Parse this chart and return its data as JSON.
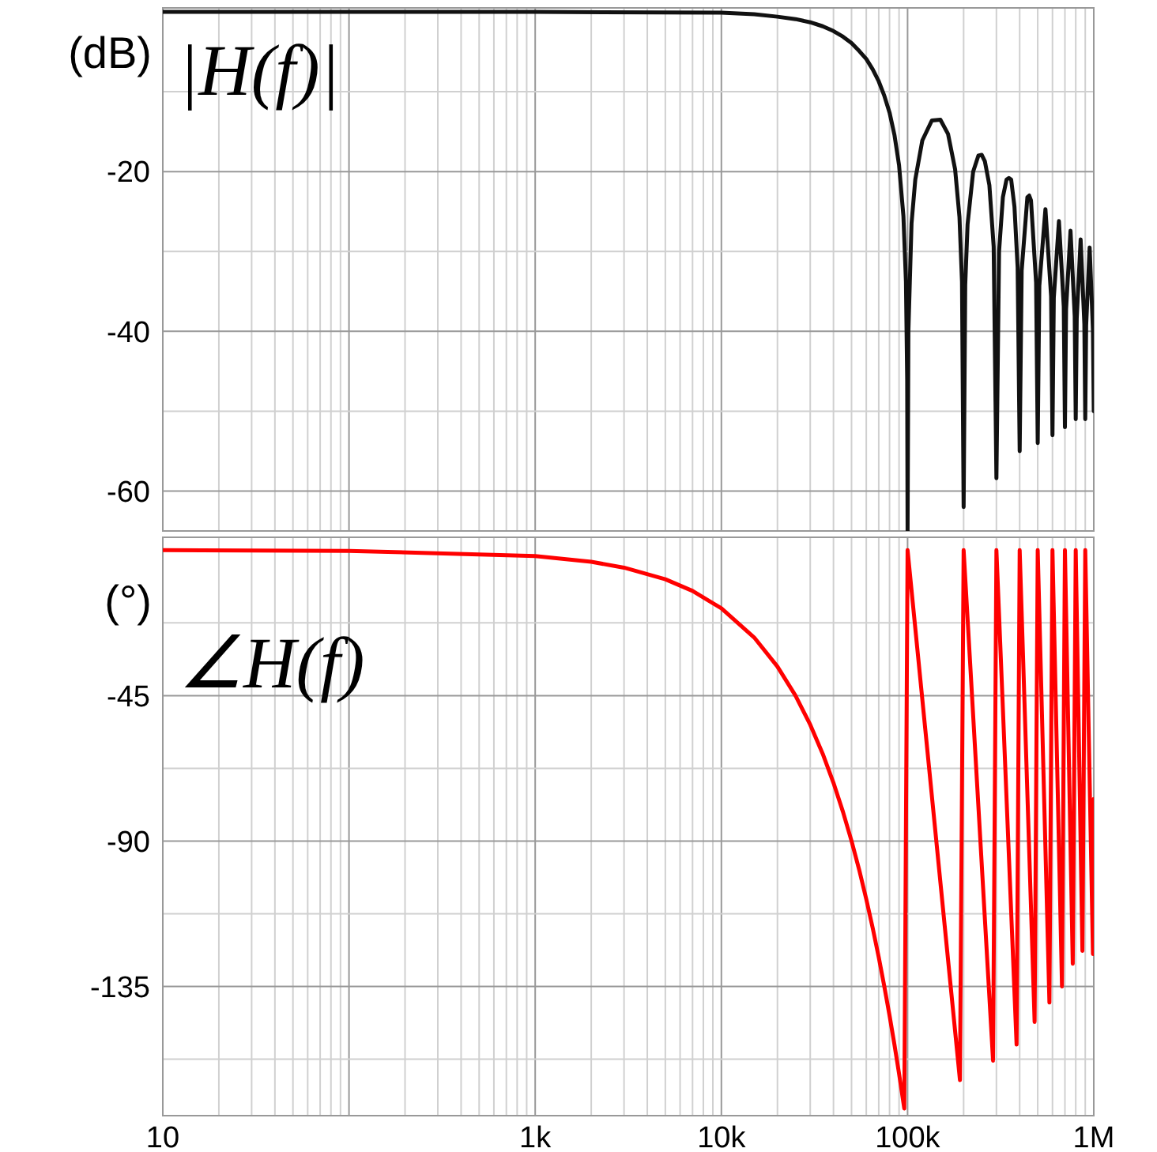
{
  "chart_data": [
    {
      "type": "line",
      "ylabel": "(dB)",
      "annotations": [
        "|H(f)|"
      ],
      "xlim": [
        10,
        1000000
      ],
      "ylim": [
        -65,
        0.5
      ],
      "log": "x",
      "grid": true,
      "tick_labels": "y",
      "xticks": [
        {
          "value": 10,
          "label": null
        },
        {
          "value": 20,
          "label": null
        },
        {
          "value": 30,
          "label": null
        },
        {
          "value": 40,
          "label": null
        },
        {
          "value": 50,
          "label": null
        },
        {
          "value": 60,
          "label": null
        },
        {
          "value": 70,
          "label": null
        },
        {
          "value": 80,
          "label": null
        },
        {
          "value": 90,
          "label": null
        },
        {
          "value": 100,
          "label": null
        },
        {
          "value": 200,
          "label": null
        },
        {
          "value": 300,
          "label": null
        },
        {
          "value": 400,
          "label": null
        },
        {
          "value": 500,
          "label": null
        },
        {
          "value": 600,
          "label": null
        },
        {
          "value": 700,
          "label": null
        },
        {
          "value": 800,
          "label": null
        },
        {
          "value": 900,
          "label": null
        },
        {
          "value": 1000,
          "label": null
        },
        {
          "value": 2000,
          "label": null
        },
        {
          "value": 3000,
          "label": null
        },
        {
          "value": 4000,
          "label": null
        },
        {
          "value": 5000,
          "label": null
        },
        {
          "value": 6000,
          "label": null
        },
        {
          "value": 7000,
          "label": null
        },
        {
          "value": 8000,
          "label": null
        },
        {
          "value": 9000,
          "label": null
        },
        {
          "value": 10000,
          "label": null
        },
        {
          "value": 20000,
          "label": null
        },
        {
          "value": 30000,
          "label": null
        },
        {
          "value": 40000,
          "label": null
        },
        {
          "value": 50000,
          "label": null
        },
        {
          "value": 60000,
          "label": null
        },
        {
          "value": 70000,
          "label": null
        },
        {
          "value": 80000,
          "label": null
        },
        {
          "value": 90000,
          "label": null
        },
        {
          "value": 100000,
          "label": null
        },
        {
          "value": 200000,
          "label": null
        },
        {
          "value": 300000,
          "label": null
        },
        {
          "value": 400000,
          "label": null
        },
        {
          "value": 500000,
          "label": null
        },
        {
          "value": 600000,
          "label": null
        },
        {
          "value": 700000,
          "label": null
        },
        {
          "value": 800000,
          "label": null
        },
        {
          "value": 900000,
          "label": null
        },
        {
          "value": 1000000,
          "label": null
        }
      ],
      "yticks": [
        {
          "value": -10,
          "label": null
        },
        -20,
        {
          "value": -30,
          "label": null
        },
        -40,
        {
          "value": -50,
          "label": null
        },
        -60
      ],
      "series": [
        {
          "color": "#111111",
          "x": [
            10,
            100,
            1000,
            10000,
            15000,
            20000,
            25000,
            30000,
            35000,
            40000,
            45000,
            50000,
            55000,
            60000,
            65000,
            70000,
            75000,
            80000,
            85000,
            90000,
            95000,
            98000,
            99500,
            100000,
            101000,
            105000,
            110000,
            120000,
            135000,
            150000,
            165000,
            180000,
            190000,
            196000,
            200000,
            204000,
            210000,
            225000,
            240000,
            250000,
            260000,
            275000,
            290000,
            300000,
            310000,
            325000,
            340000,
            350000,
            360000,
            375000,
            390000,
            400000,
            410000,
            440000,
            450000,
            460000,
            490000,
            500000,
            510000,
            550000,
            590000,
            600000,
            610000,
            650000,
            690000,
            700000,
            710000,
            750000,
            790000,
            800000,
            810000,
            850000,
            890000,
            900000,
            910000,
            950000,
            990000,
            1000000
          ],
          "values": [
            0,
            0,
            0,
            -0.1,
            -0.3,
            -0.6,
            -0.9,
            -1.3,
            -1.8,
            -2.4,
            -3.1,
            -3.9,
            -4.9,
            -5.9,
            -7.2,
            -8.7,
            -10.5,
            -12.6,
            -15.4,
            -19.2,
            -25.6,
            -33.8,
            -46,
            -65,
            -40,
            -26.5,
            -21,
            -16.1,
            -13.6,
            -13.5,
            -15.3,
            -19.7,
            -25.7,
            -33.8,
            -62,
            -34.2,
            -26.6,
            -20,
            -18,
            -17.9,
            -18.7,
            -21.7,
            -29.4,
            -58.4,
            -30,
            -23.2,
            -21,
            -20.8,
            -21,
            -24.4,
            -32,
            -55,
            -32.4,
            -23.2,
            -23,
            -23.6,
            -33.9,
            -54,
            -34.3,
            -24.7,
            -35.6,
            -53,
            -35.8,
            -26.2,
            -36.9,
            -52,
            -37.2,
            -27.4,
            -38.1,
            -51,
            -38.4,
            -28.5,
            -39.1,
            -51,
            -39.3,
            -29.5,
            -39.9,
            -50
          ]
        }
      ]
    },
    {
      "type": "line",
      "ylabel": "(°)",
      "annotations": [
        "∠H(f)"
      ],
      "xlim": [
        10,
        1000000
      ],
      "ylim": [
        -175,
        4
      ],
      "log": "x",
      "grid": true,
      "xticks": [
        {
          "value": 10,
          "label": "10"
        },
        {
          "value": 20,
          "label": null
        },
        {
          "value": 30,
          "label": null
        },
        {
          "value": 40,
          "label": null
        },
        {
          "value": 50,
          "label": null
        },
        {
          "value": 60,
          "label": null
        },
        {
          "value": 70,
          "label": null
        },
        {
          "value": 80,
          "label": null
        },
        {
          "value": 90,
          "label": null
        },
        {
          "value": 100,
          "label": null
        },
        {
          "value": 200,
          "label": null
        },
        {
          "value": 300,
          "label": null
        },
        {
          "value": 400,
          "label": null
        },
        {
          "value": 500,
          "label": null
        },
        {
          "value": 600,
          "label": null
        },
        {
          "value": 700,
          "label": null
        },
        {
          "value": 800,
          "label": null
        },
        {
          "value": 900,
          "label": null
        },
        {
          "value": 1000,
          "label": "1k"
        },
        {
          "value": 2000,
          "label": null
        },
        {
          "value": 3000,
          "label": null
        },
        {
          "value": 4000,
          "label": null
        },
        {
          "value": 5000,
          "label": null
        },
        {
          "value": 6000,
          "label": null
        },
        {
          "value": 7000,
          "label": null
        },
        {
          "value": 8000,
          "label": null
        },
        {
          "value": 9000,
          "label": null
        },
        {
          "value": 10000,
          "label": "10k"
        },
        {
          "value": 20000,
          "label": null
        },
        {
          "value": 30000,
          "label": null
        },
        {
          "value": 40000,
          "label": null
        },
        {
          "value": 50000,
          "label": null
        },
        {
          "value": 60000,
          "label": null
        },
        {
          "value": 70000,
          "label": null
        },
        {
          "value": 80000,
          "label": null
        },
        {
          "value": 90000,
          "label": null
        },
        {
          "value": 100000,
          "label": "100k"
        },
        {
          "value": 200000,
          "label": null
        },
        {
          "value": 300000,
          "label": null
        },
        {
          "value": 400000,
          "label": null
        },
        {
          "value": 500000,
          "label": null
        },
        {
          "value": 600000,
          "label": null
        },
        {
          "value": 700000,
          "label": null
        },
        {
          "value": 800000,
          "label": null
        },
        {
          "value": 900000,
          "label": null
        },
        {
          "value": 1000000,
          "label": "1M"
        }
      ],
      "yticks": [
        {
          "value": -22.5,
          "label": null
        },
        -45,
        {
          "value": -67.5,
          "label": null
        },
        -90,
        {
          "value": -112.5,
          "label": null
        },
        -135,
        {
          "value": -157.5,
          "label": null
        }
      ],
      "series": [
        {
          "color": "#ff0000",
          "x": [
            10,
            100,
            1000,
            2000,
            3000,
            5000,
            7000,
            10000,
            15000,
            20000,
            25000,
            30000,
            35000,
            40000,
            45000,
            50000,
            55000,
            60000,
            65000,
            70000,
            75000,
            80000,
            85000,
            90000,
            96000,
            100000,
            191100,
            200000,
            287800,
            300000,
            385000,
            400000,
            481100,
            500000,
            577800,
            600000,
            675000,
            700000,
            771100,
            800000,
            868900,
            900000,
            990000,
            1000000
          ],
          "values": [
            0,
            -0.2,
            -1.8,
            -3.6,
            -5.4,
            -9,
            -12.6,
            -18,
            -27,
            -36,
            -45,
            -54,
            -63,
            -72,
            -81,
            -90,
            -99,
            -108,
            -117,
            -126,
            -135,
            -144,
            -153,
            -162,
            -172.8,
            0,
            -164,
            0,
            -158,
            0,
            -153,
            0,
            -146,
            0,
            -140,
            0,
            -135,
            0,
            -128,
            0,
            -124,
            0,
            -125,
            -77
          ]
        }
      ]
    }
  ]
}
